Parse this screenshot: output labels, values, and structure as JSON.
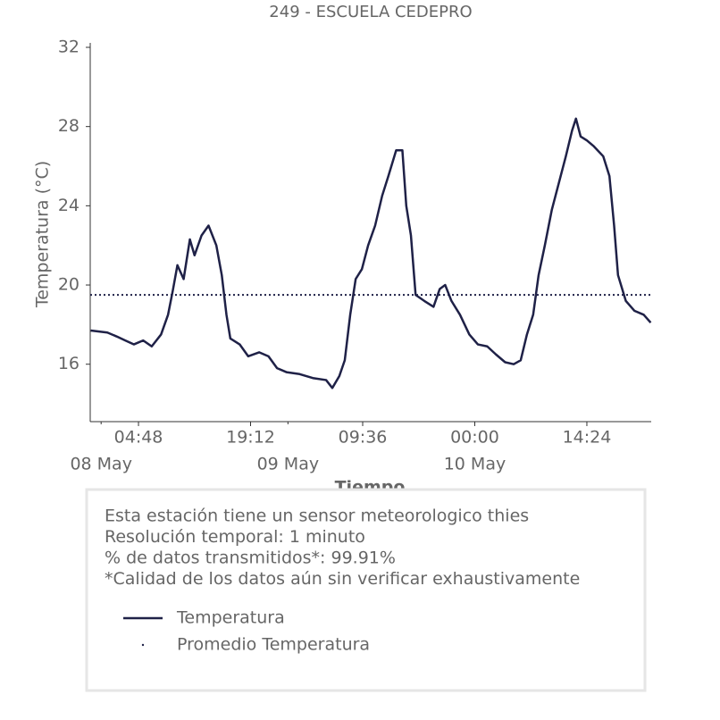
{
  "chart_data": {
    "type": "line",
    "title": "249 - ESCUELA CEDEPRO",
    "xlabel": "Tiempo",
    "ylabel": "Temperatura (°C)",
    "xlim": [
      "07 May 22:36",
      "10 May 22:40"
    ],
    "ylim": [
      13.1,
      32
    ],
    "yticks": [
      16,
      20,
      24,
      28,
      32
    ],
    "xticks": [
      {
        "value": "08 May 04:48",
        "label": "04:48"
      },
      {
        "value": "08 May 19:12",
        "label": "19:12"
      },
      {
        "value": "09 May 09:36",
        "label": "09:36"
      },
      {
        "value": "10 May 00:00",
        "label": "00:00"
      },
      {
        "value": "10 May 14:24",
        "label": "14:24"
      }
    ],
    "date_ticks": [
      {
        "value": "08 May 00:00",
        "label": "08 May"
      },
      {
        "value": "09 May 00:00",
        "label": "09 May"
      },
      {
        "value": "10 May 00:00",
        "label": "10 May"
      }
    ],
    "x": [
      "07 May 22:40",
      "08 May 00:48",
      "08 May 02:00",
      "08 May 03:06",
      "08 May 04:12",
      "08 May 05:24",
      "08 May 06:30",
      "08 May 07:42",
      "08 May 08:36",
      "08 May 09:12",
      "08 May 09:48",
      "08 May 10:36",
      "08 May 11:24",
      "08 May 12:00",
      "08 May 12:54",
      "08 May 13:48",
      "08 May 14:48",
      "08 May 15:30",
      "08 May 16:06",
      "08 May 16:36",
      "08 May 17:48",
      "08 May 18:54",
      "08 May 20:18",
      "08 May 21:30",
      "08 May 22:36",
      "08 May 23:48",
      "09 May 01:30",
      "09 May 03:12",
      "09 May 04:54",
      "09 May 05:42",
      "09 May 06:36",
      "09 May 07:18",
      "09 May 08:00",
      "09 May 08:42",
      "09 May 09:30",
      "09 May 10:18",
      "09 May 11:12",
      "09 May 12:06",
      "09 May 12:54",
      "09 May 13:54",
      "09 May 14:42",
      "09 May 15:12",
      "09 May 15:48",
      "09 May 16:24",
      "09 May 17:30",
      "09 May 18:42",
      "09 May 19:30",
      "09 May 20:12",
      "09 May 21:00",
      "09 May 22:06",
      "09 May 23:18",
      "10 May 00:24",
      "10 May 01:36",
      "10 May 02:42",
      "10 May 03:54",
      "10 May 05:00",
      "10 May 05:54",
      "10 May 06:42",
      "10 May 07:30",
      "10 May 08:12",
      "10 May 09:00",
      "10 May 09:54",
      "10 May 10:42",
      "10 May 11:42",
      "10 May 12:30",
      "10 May 13:00",
      "10 May 13:36",
      "10 May 14:24",
      "10 May 15:18",
      "10 May 16:30",
      "10 May 17:18",
      "10 May 17:54",
      "10 May 18:24",
      "10 May 19:24",
      "10 May 20:30",
      "10 May 21:42",
      "10 May 22:36"
    ],
    "series": [
      {
        "name": "Temperatura",
        "color": "#1f2147",
        "values": [
          17.7,
          17.6,
          17.4,
          17.2,
          17.0,
          17.2,
          16.9,
          17.5,
          18.5,
          19.7,
          21.0,
          20.3,
          22.3,
          21.5,
          22.5,
          23.0,
          22.0,
          20.5,
          18.5,
          17.3,
          17.0,
          16.4,
          16.6,
          16.4,
          15.8,
          15.6,
          15.5,
          15.3,
          15.2,
          14.8,
          15.4,
          16.2,
          18.5,
          20.3,
          20.8,
          22.0,
          23.0,
          24.5,
          25.5,
          26.8,
          26.8,
          24.0,
          22.5,
          19.5,
          19.2,
          18.9,
          19.8,
          20.0,
          19.2,
          18.5,
          17.5,
          17.0,
          16.9,
          16.5,
          16.1,
          16.0,
          16.2,
          17.5,
          18.5,
          20.5,
          22.0,
          23.8,
          25.0,
          26.5,
          27.8,
          28.4,
          27.5,
          27.3,
          27.0,
          26.5,
          25.5,
          23.0,
          20.5,
          19.2,
          18.7,
          18.5,
          18.1
        ]
      }
    ],
    "average": {
      "name": "Promedio Temperatura",
      "color": "#1f2147",
      "style": "dotted",
      "value": 19.5
    },
    "notes": [
      "Esta estación tiene un sensor meteorologico thies",
      "Resolución temporal: 1 minuto",
      "% de datos transmitidos*: 99.91%",
      "*Calidad de los datos aún sin verificar exhaustivamente"
    ]
  }
}
